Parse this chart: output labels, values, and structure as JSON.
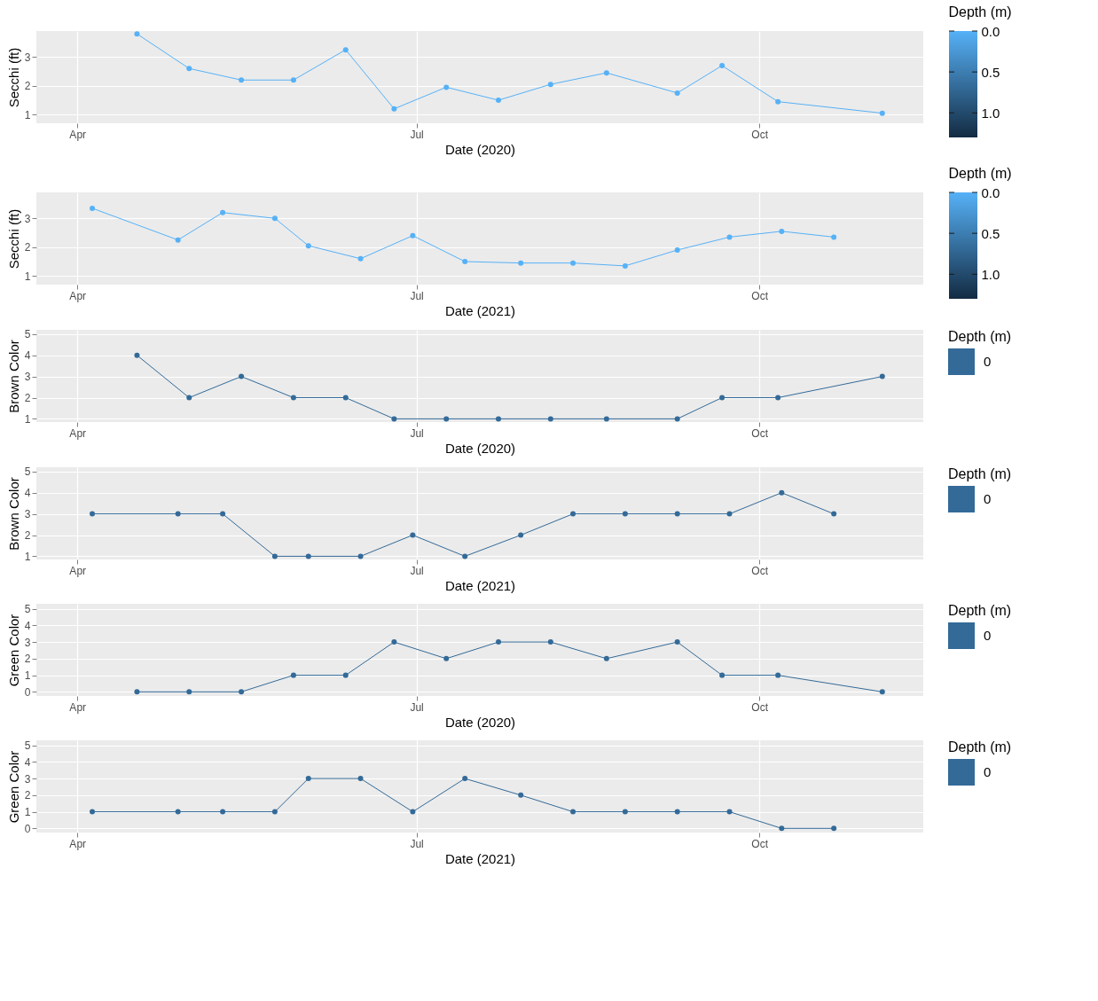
{
  "chart_data": [
    {
      "type": "line",
      "xlabel": "Date (2020)",
      "ylabel": "Secchi (ft)",
      "clabel": "Depth (m)",
      "marker": "circle",
      "grid": true,
      "x": [
        "2020-04-17",
        "2020-05-01",
        "2020-05-15",
        "2020-05-29",
        "2020-06-12",
        "2020-06-25",
        "2020-07-09",
        "2020-07-23",
        "2020-08-06",
        "2020-08-21",
        "2020-09-09",
        "2020-09-21",
        "2020-10-06",
        "2020-11-03"
      ],
      "series": [
        {
          "color": "#56b1f7",
          "values": [
            3.8,
            2.6,
            2.2,
            2.2,
            3.25,
            1.2,
            1.95,
            1.5,
            2.05,
            2.45,
            1.75,
            2.7,
            1.45,
            1.05
          ]
        }
      ],
      "clim": [
        0,
        1.3
      ],
      "cticks": [
        {
          "value": 0,
          "label": "0.0"
        },
        {
          "value": 0.5,
          "label": "0.5"
        },
        {
          "value": 1,
          "label": "1.0"
        }
      ],
      "xlim": [
        "2020-03-21",
        "2020-11-14"
      ],
      "xticks": [
        {
          "value": "2020-04-01",
          "label": "Apr"
        },
        {
          "value": "2020-07-01",
          "label": "Jul"
        },
        {
          "value": "2020-10-01",
          "label": "Oct"
        }
      ],
      "ylim": [
        0.7,
        3.9
      ],
      "yticks": [
        1,
        2,
        3
      ]
    },
    {
      "type": "line",
      "xlabel": "Date (2021)",
      "ylabel": "Secchi (ft)",
      "clabel": "Depth (m)",
      "marker": "circle",
      "grid": true,
      "x": [
        "2021-04-05",
        "2021-04-28",
        "2021-05-10",
        "2021-05-24",
        "2021-06-02",
        "2021-06-16",
        "2021-06-30",
        "2021-07-14",
        "2021-07-29",
        "2021-08-12",
        "2021-08-26",
        "2021-09-09",
        "2021-09-23",
        "2021-10-07",
        "2021-10-21"
      ],
      "series": [
        {
          "color": "#56b1f7",
          "values": [
            3.35,
            2.25,
            3.2,
            3.0,
            2.05,
            1.6,
            2.4,
            1.5,
            1.45,
            1.45,
            1.35,
            1.9,
            2.35,
            2.55,
            2.35
          ]
        }
      ],
      "clim": [
        0,
        1.3
      ],
      "cticks": [
        {
          "value": 0,
          "label": "0.0"
        },
        {
          "value": 0.5,
          "label": "0.5"
        },
        {
          "value": 1,
          "label": "1.0"
        }
      ],
      "xlim": [
        "2021-03-21",
        "2021-11-14"
      ],
      "xticks": [
        {
          "value": "2021-04-01",
          "label": "Apr"
        },
        {
          "value": "2021-07-01",
          "label": "Jul"
        },
        {
          "value": "2021-10-01",
          "label": "Oct"
        }
      ],
      "ylim": [
        0.7,
        3.9
      ],
      "yticks": [
        1,
        2,
        3
      ]
    },
    {
      "type": "line",
      "xlabel": "Date (2020)",
      "ylabel": "Brown Color",
      "legend_title": "Depth (m)",
      "legend": "right",
      "marker": "circle",
      "grid": true,
      "x": [
        "2020-04-17",
        "2020-05-01",
        "2020-05-15",
        "2020-05-29",
        "2020-06-12",
        "2020-06-25",
        "2020-07-09",
        "2020-07-23",
        "2020-08-06",
        "2020-08-21",
        "2020-09-09",
        "2020-09-21",
        "2020-10-06",
        "2020-11-03"
      ],
      "series": [
        {
          "name": "0",
          "color": "#336a98",
          "values": [
            4,
            2,
            3,
            2,
            2,
            1,
            1,
            1,
            1,
            1,
            1,
            2,
            2,
            3
          ]
        }
      ],
      "xlim": [
        "2020-03-21",
        "2020-11-14"
      ],
      "xticks": [
        {
          "value": "2020-04-01",
          "label": "Apr"
        },
        {
          "value": "2020-07-01",
          "label": "Jul"
        },
        {
          "value": "2020-10-01",
          "label": "Oct"
        }
      ],
      "ylim": [
        0.85,
        5.2
      ],
      "yticks": [
        1,
        2,
        3,
        4,
        5
      ]
    },
    {
      "type": "line",
      "xlabel": "Date (2021)",
      "ylabel": "Brown Color",
      "legend_title": "Depth (m)",
      "legend": "right",
      "marker": "circle",
      "grid": true,
      "x": [
        "2021-04-05",
        "2021-04-28",
        "2021-05-10",
        "2021-05-24",
        "2021-06-02",
        "2021-06-16",
        "2021-06-30",
        "2021-07-14",
        "2021-07-29",
        "2021-08-12",
        "2021-08-26",
        "2021-09-09",
        "2021-09-23",
        "2021-10-07",
        "2021-10-21"
      ],
      "series": [
        {
          "name": "0",
          "color": "#336a98",
          "values": [
            3,
            3,
            3,
            1,
            1,
            1,
            2,
            1,
            2,
            3,
            3,
            3,
            3,
            4,
            3
          ]
        }
      ],
      "xlim": [
        "2021-03-21",
        "2021-11-14"
      ],
      "xticks": [
        {
          "value": "2021-04-01",
          "label": "Apr"
        },
        {
          "value": "2021-07-01",
          "label": "Jul"
        },
        {
          "value": "2021-10-01",
          "label": "Oct"
        }
      ],
      "ylim": [
        0.85,
        5.2
      ],
      "yticks": [
        1,
        2,
        3,
        4,
        5
      ]
    },
    {
      "type": "line",
      "xlabel": "Date (2020)",
      "ylabel": "Green Color",
      "legend_title": "Depth (m)",
      "legend": "right",
      "marker": "circle",
      "grid": true,
      "x": [
        "2020-04-17",
        "2020-05-01",
        "2020-05-15",
        "2020-05-29",
        "2020-06-12",
        "2020-06-25",
        "2020-07-09",
        "2020-07-23",
        "2020-08-06",
        "2020-08-21",
        "2020-09-09",
        "2020-09-21",
        "2020-10-06",
        "2020-11-03"
      ],
      "series": [
        {
          "name": "0",
          "color": "#336a98",
          "values": [
            0,
            0,
            0,
            1,
            1,
            3,
            2,
            3,
            3,
            2,
            3,
            1,
            1,
            0
          ]
        }
      ],
      "xlim": [
        "2020-03-21",
        "2020-11-14"
      ],
      "xticks": [
        {
          "value": "2020-04-01",
          "label": "Apr"
        },
        {
          "value": "2020-07-01",
          "label": "Jul"
        },
        {
          "value": "2020-10-01",
          "label": "Oct"
        }
      ],
      "ylim": [
        -0.25,
        5.3
      ],
      "yticks": [
        0,
        1,
        2,
        3,
        4,
        5
      ]
    },
    {
      "type": "line",
      "xlabel": "Date (2021)",
      "ylabel": "Green Color",
      "legend_title": "Depth (m)",
      "legend": "right",
      "marker": "circle",
      "grid": true,
      "x": [
        "2021-04-05",
        "2021-04-28",
        "2021-05-10",
        "2021-05-24",
        "2021-06-02",
        "2021-06-16",
        "2021-06-30",
        "2021-07-14",
        "2021-07-29",
        "2021-08-12",
        "2021-08-26",
        "2021-09-09",
        "2021-09-23",
        "2021-10-07",
        "2021-10-21"
      ],
      "series": [
        {
          "name": "0",
          "color": "#336a98",
          "values": [
            1,
            1,
            1,
            1,
            3,
            3,
            1,
            3,
            2,
            1,
            1,
            1,
            1,
            0,
            0
          ]
        }
      ],
      "xlim": [
        "2021-03-21",
        "2021-11-14"
      ],
      "xticks": [
        {
          "value": "2021-04-01",
          "label": "Apr"
        },
        {
          "value": "2021-07-01",
          "label": "Jul"
        },
        {
          "value": "2021-10-01",
          "label": "Oct"
        }
      ],
      "ylim": [
        -0.25,
        5.3
      ],
      "yticks": [
        0,
        1,
        2,
        3,
        4,
        5
      ]
    }
  ]
}
